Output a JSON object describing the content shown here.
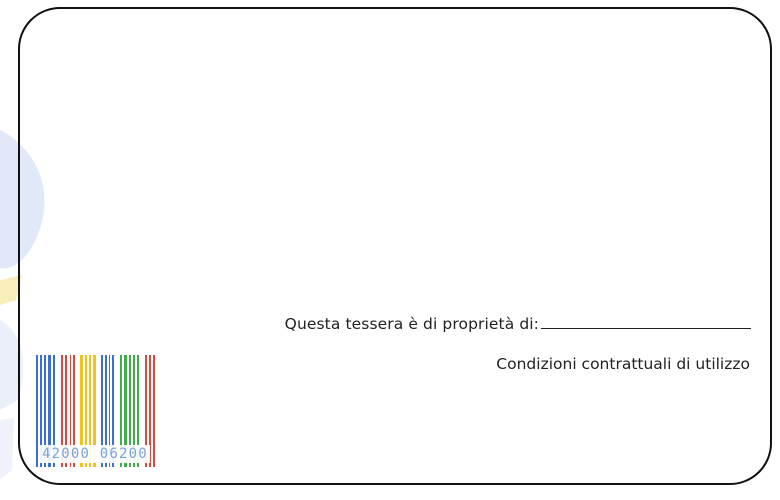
{
  "card": {
    "owner_label": "Questa tessera è di proprietà di:",
    "owner_value": "",
    "conditions_label": "Condizioni contrattuali di utilizzo"
  },
  "barcode": {
    "digits": "42000 06200",
    "colors": [
      "#3b6fd4",
      "#e2463b",
      "#f2c21b",
      "#3fae49"
    ]
  },
  "decor": {
    "bg_tint": "#c9d6f2"
  }
}
